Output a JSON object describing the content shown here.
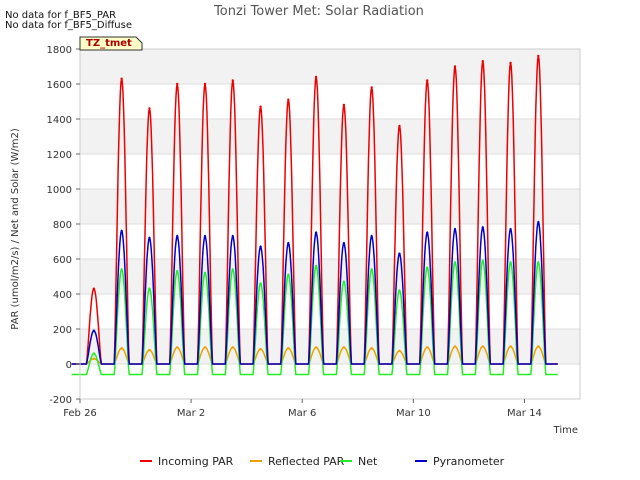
{
  "chart_data": {
    "type": "line",
    "title": "Tonzi Tower Met: Solar Radiation",
    "xlabel": "Time",
    "ylabel": "PAR (umol/m2/s) / Net and Solar (W/m2)",
    "ylim": [
      -200,
      1800
    ],
    "yticks": [
      -200,
      0,
      200,
      400,
      600,
      800,
      1000,
      1200,
      1400,
      1600,
      1800
    ],
    "xlim": [
      "2025-02-26",
      "2025-03-16"
    ],
    "xticks": [
      {
        "label": "Feb 26",
        "date": "2025-02-26"
      },
      {
        "label": "Mar 2",
        "date": "2025-03-02"
      },
      {
        "label": "Mar 6",
        "date": "2025-03-06"
      },
      {
        "label": "Mar 10",
        "date": "2025-03-10"
      },
      {
        "label": "Mar 14",
        "date": "2025-03-14"
      }
    ],
    "grid": true,
    "legend_position": "bottom",
    "notes": [
      "No data for f_BF5_PAR",
      "No data for f_BF5_Diffuse"
    ],
    "site_label": "TZ_tmet",
    "series": [
      {
        "name": "Incoming PAR",
        "color": "#ee0000",
        "x": [
          "2025-02-26 12:00",
          "2025-02-27 12:00",
          "2025-02-28 12:00",
          "2025-03-01 12:00",
          "2025-03-02 12:00",
          "2025-03-03 12:00",
          "2025-03-04 12:00",
          "2025-03-05 12:00",
          "2025-03-06 12:00",
          "2025-03-07 12:00",
          "2025-03-08 12:00",
          "2025-03-09 12:00",
          "2025-03-10 12:00",
          "2025-03-11 12:00",
          "2025-03-12 12:00",
          "2025-03-13 12:00",
          "2025-03-14 12:00"
        ],
        "values": [
          430,
          1630,
          1460,
          1600,
          1600,
          1620,
          1470,
          1510,
          1640,
          1480,
          1580,
          1360,
          1620,
          1700,
          1730,
          1720,
          1760
        ]
      },
      {
        "name": "Reflected PAR",
        "color": "#f0a000",
        "x": [
          "2025-02-26 12:00",
          "2025-02-27 12:00",
          "2025-02-28 12:00",
          "2025-03-01 12:00",
          "2025-03-02 12:00",
          "2025-03-03 12:00",
          "2025-03-04 12:00",
          "2025-03-05 12:00",
          "2025-03-06 12:00",
          "2025-03-07 12:00",
          "2025-03-08 12:00",
          "2025-03-09 12:00",
          "2025-03-10 12:00",
          "2025-03-11 12:00",
          "2025-03-12 12:00",
          "2025-03-13 12:00",
          "2025-03-14 12:00"
        ],
        "values": [
          30,
          90,
          80,
          95,
          95,
          95,
          85,
          90,
          95,
          95,
          90,
          75,
          95,
          100,
          100,
          100,
          100
        ]
      },
      {
        "name": "Net",
        "color": "#22ee22",
        "x": [
          "2025-02-26 12:00",
          "2025-02-27 12:00",
          "2025-02-28 12:00",
          "2025-03-01 12:00",
          "2025-03-02 12:00",
          "2025-03-03 12:00",
          "2025-03-04 12:00",
          "2025-03-05 12:00",
          "2025-03-06 12:00",
          "2025-03-07 12:00",
          "2025-03-08 12:00",
          "2025-03-09 12:00",
          "2025-03-10 12:00",
          "2025-03-11 12:00",
          "2025-03-12 12:00",
          "2025-03-13 12:00",
          "2025-03-14 12:00"
        ],
        "values": [
          60,
          540,
          430,
          530,
          520,
          540,
          460,
          510,
          560,
          470,
          540,
          420,
          550,
          580,
          590,
          580,
          580
        ],
        "night_value": -60
      },
      {
        "name": "Pyranometer",
        "color": "#0000cc",
        "x": [
          "2025-02-26 12:00",
          "2025-02-27 12:00",
          "2025-02-28 12:00",
          "2025-03-01 12:00",
          "2025-03-02 12:00",
          "2025-03-03 12:00",
          "2025-03-04 12:00",
          "2025-03-05 12:00",
          "2025-03-06 12:00",
          "2025-03-07 12:00",
          "2025-03-08 12:00",
          "2025-03-09 12:00",
          "2025-03-10 12:00",
          "2025-03-11 12:00",
          "2025-03-12 12:00",
          "2025-03-13 12:00",
          "2025-03-14 12:00"
        ],
        "values": [
          190,
          760,
          720,
          730,
          730,
          730,
          670,
          690,
          750,
          690,
          730,
          630,
          750,
          770,
          780,
          770,
          810
        ]
      }
    ]
  }
}
